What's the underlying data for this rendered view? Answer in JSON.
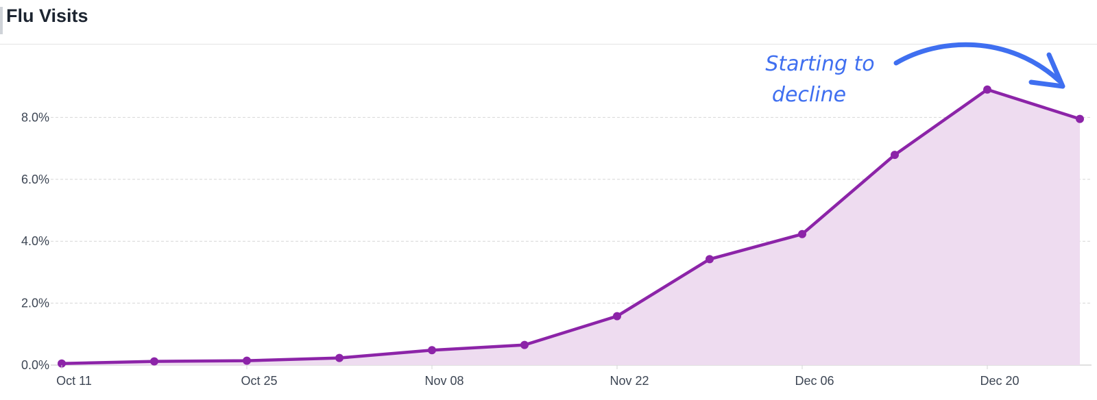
{
  "page": {
    "title": "Flu Visits"
  },
  "colors": {
    "line": "#8c24a8",
    "fill": "#eedcf0",
    "grid": "#d6d6d6",
    "annotation": "#3f6ff0"
  },
  "chart_data": {
    "type": "area",
    "title": "Flu Visits",
    "xlabel": "",
    "ylabel": "",
    "x_tick_labels": [
      "Oct 11",
      "Oct 25",
      "Nov 08",
      "Nov 22",
      "Dec 06",
      "Dec 20"
    ],
    "y_tick_labels": [
      "0.0%",
      "2.0%",
      "4.0%",
      "6.0%",
      "8.0%"
    ],
    "ylim": [
      0,
      10
    ],
    "grid": true,
    "x": [
      "Oct 11",
      "Oct 18",
      "Oct 25",
      "Nov 01",
      "Nov 08",
      "Nov 15",
      "Nov 22",
      "Nov 29",
      "Dec 06",
      "Dec 13",
      "Dec 20",
      "Dec 27"
    ],
    "series": [
      {
        "values": [
          0.05,
          0.12,
          0.14,
          0.23,
          0.48,
          0.65,
          1.58,
          3.42,
          4.23,
          6.79,
          8.9,
          7.95
        ]
      }
    ],
    "annotation": {
      "lines": [
        "Starting to",
        "decline"
      ],
      "arrow_to": "Dec 27"
    }
  }
}
